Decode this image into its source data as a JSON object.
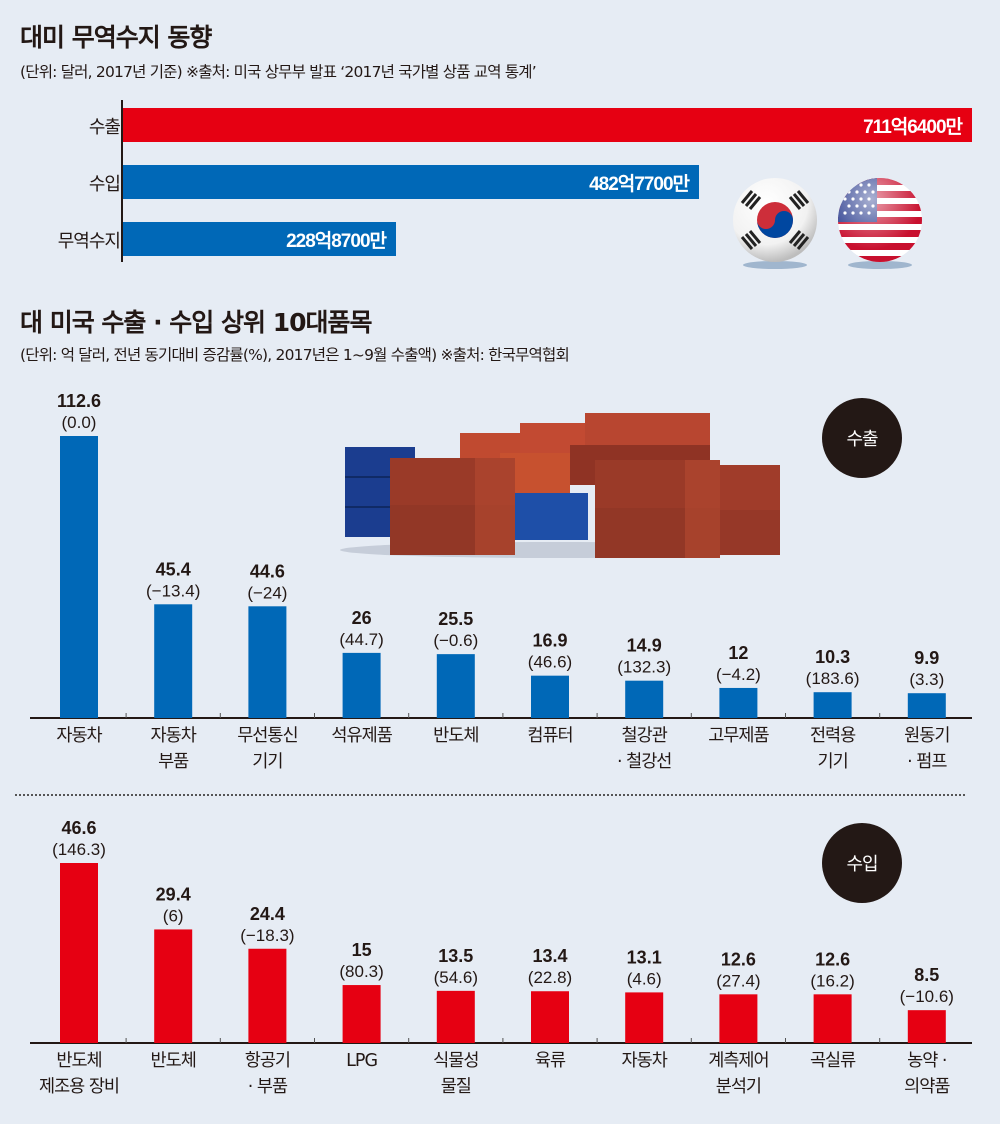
{
  "section1": {
    "title": "대미 무역수지 동향",
    "subtitle": "(단위: 달러, 2017년 기준) ※출처: 미국 상무부 발표 ‘2017년 국가별 상품 교역 통계’",
    "bars": [
      {
        "label": "수출",
        "value_text": "711억6400만",
        "value": 711.64,
        "color": "#e60012"
      },
      {
        "label": "수입",
        "value_text": "482억7700만",
        "value": 482.77,
        "color": "#0068b7"
      },
      {
        "label": "무역수지",
        "value_text": "228억8700만",
        "value": 228.87,
        "color": "#0068b7"
      }
    ],
    "flags": [
      "korea-flag",
      "usa-flag"
    ]
  },
  "section2": {
    "title": "대 미국 수출 · 수입 상위 10대품목",
    "subtitle": "(단위: 억 달러, 전년 동기대비 증감률(%), 2017년은 1~9월 수출액)  ※출처: 한국무역협회",
    "export_badge": "수출",
    "import_badge": "수입"
  },
  "chart_data": [
    {
      "type": "bar",
      "title": "수출",
      "unit": "억 달러",
      "color": "#0068b7",
      "categories": [
        "자동차",
        "자동차\n부품",
        "무선통신\n기기",
        "석유제품",
        "반도체",
        "컴퓨터",
        "철강관\n· 철강선",
        "고무제품",
        "전력용\n기기",
        "원동기\n· 펌프"
      ],
      "values": [
        112.6,
        45.4,
        44.6,
        26,
        25.5,
        16.9,
        14.9,
        12,
        10.3,
        9.9
      ],
      "value_labels": [
        "112.6",
        "45.4",
        "44.6",
        "26",
        "25.5",
        "16.9",
        "14.9",
        "12",
        "10.3",
        "9.9"
      ],
      "change_labels": [
        "(0.0)",
        "(−13.4)",
        "(−24)",
        "(44.7)",
        "(−0.6)",
        "(46.6)",
        "(132.3)",
        "(−4.2)",
        "(183.6)",
        "(3.3)"
      ],
      "ylim": [
        0,
        112.6
      ]
    },
    {
      "type": "bar",
      "title": "수입",
      "unit": "억 달러",
      "color": "#e60012",
      "categories": [
        "반도체\n제조용 장비",
        "반도체",
        "항공기\n· 부품",
        "LPG",
        "식물성\n물질",
        "육류",
        "자동차",
        "계측제어\n분석기",
        "곡실류",
        "농약 ·\n의약품"
      ],
      "values": [
        46.6,
        29.4,
        24.4,
        15,
        13.5,
        13.4,
        13.1,
        12.6,
        12.6,
        8.5
      ],
      "value_labels": [
        "46.6",
        "29.4",
        "24.4",
        "15",
        "13.5",
        "13.4",
        "13.1",
        "12.6",
        "12.6",
        "8.5"
      ],
      "change_labels": [
        "(146.3)",
        "(6)",
        "(−18.3)",
        "(80.3)",
        "(54.6)",
        "(22.8)",
        "(4.6)",
        "(27.4)",
        "(16.2)",
        "(−10.6)"
      ],
      "ylim": [
        0,
        46.6
      ]
    }
  ]
}
